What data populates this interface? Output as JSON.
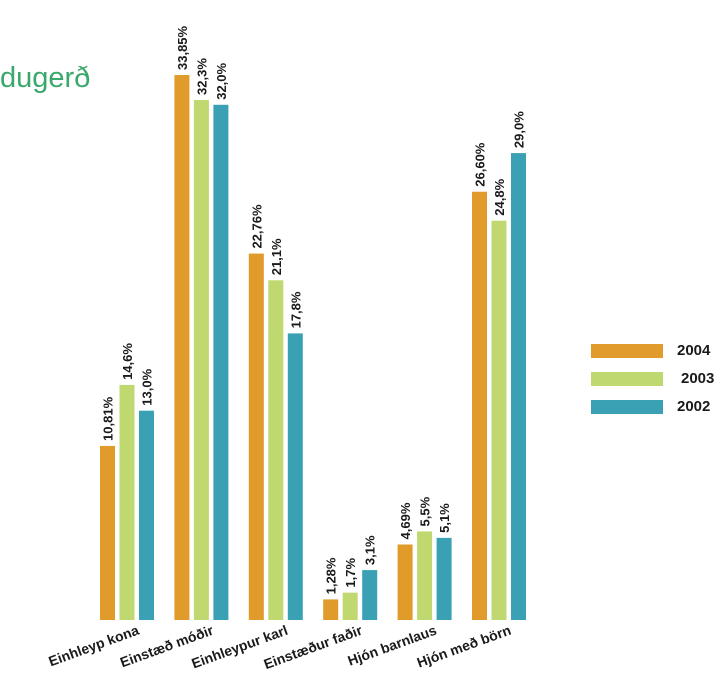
{
  "title_fragment": "dugerð",
  "chart_data": {
    "type": "bar",
    "categories": [
      "Einhleyp kona",
      "Einstæð móðir",
      "Einhleypur karl",
      "Einstæður faðir",
      "Hjón barnlaus",
      "Hjón með börn"
    ],
    "series": [
      {
        "name": "2004",
        "color": "#e09b2a",
        "values": [
          10.81,
          33.85,
          22.76,
          1.28,
          4.69,
          26.6
        ],
        "labels": [
          "10,81%",
          "33,85%",
          "22,76%",
          "1,28%",
          "4,69%",
          "26,60%"
        ]
      },
      {
        "name": "2003",
        "color": "#bfd86f",
        "values": [
          14.6,
          32.3,
          21.1,
          1.7,
          5.5,
          24.8
        ],
        "labels": [
          "14,6%",
          "32,3%",
          "21,1%",
          "1,7%",
          "5,5%",
          "24,8%"
        ]
      },
      {
        "name": "2002",
        "color": "#3aa0b4",
        "values": [
          13.0,
          32.0,
          17.8,
          3.1,
          5.1,
          29.0
        ],
        "labels": [
          "13,0%",
          "32,0%",
          "17,8%",
          "3,1%",
          "5,1%",
          "29,0%"
        ]
      }
    ],
    "ylim": [
      0,
      33.85
    ],
    "grid": false,
    "legend_position": "right"
  }
}
